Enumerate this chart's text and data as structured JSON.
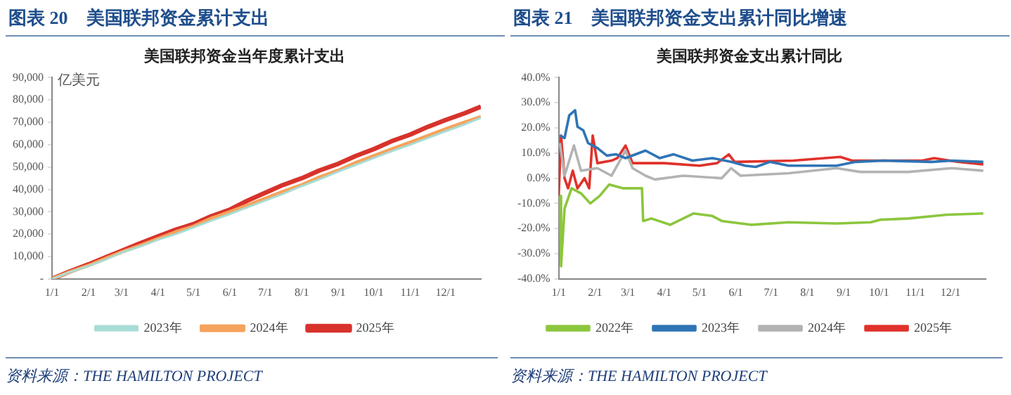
{
  "chart_data": [
    {
      "type": "line",
      "title": "图表 20　美国联邦资金累计支出",
      "subtitle": "美国联邦资金当年度累计支出",
      "ylabel": "亿美元",
      "annotations": [
        "资料来源：THE HAMILTON PROJECT"
      ],
      "legend": "bottom",
      "marker": "none",
      "xlim": [
        "--01-01",
        "--12-31"
      ],
      "xticks": [
        {
          "value": "--01-01",
          "label": "1/1"
        },
        {
          "value": "--02-01",
          "label": "2/1"
        },
        {
          "value": "--03-01",
          "label": "3/1"
        },
        {
          "value": "--04-01",
          "label": "4/1"
        },
        {
          "value": "--05-01",
          "label": "5/1"
        },
        {
          "value": "--06-01",
          "label": "6/1"
        },
        {
          "value": "--07-01",
          "label": "7/1"
        },
        {
          "value": "--08-01",
          "label": "8/1"
        },
        {
          "value": "--09-01",
          "label": "9/1"
        },
        {
          "value": "--10-01",
          "label": "10/1"
        },
        {
          "value": "--11-01",
          "label": "11/1"
        },
        {
          "value": "--12-01",
          "label": "12/1"
        }
      ],
      "ylim": [
        0,
        90000
      ],
      "yticks": [
        {
          "value": 0,
          "label": "-"
        },
        {
          "value": 10000,
          "label": "10,000"
        },
        {
          "value": 20000,
          "label": "20,000"
        },
        {
          "value": 30000,
          "label": "30,000"
        },
        {
          "value": 40000,
          "label": "40,000"
        },
        {
          "value": 50000,
          "label": "50,000"
        },
        {
          "value": 60000,
          "label": "60,000"
        },
        {
          "value": 70000,
          "label": "70,000"
        },
        {
          "value": 80000,
          "label": "80,000"
        },
        {
          "value": 90000,
          "label": "90,000"
        }
      ],
      "x": [
        "--01-01",
        "--01-16",
        "--02-01",
        "--02-15",
        "--03-01",
        "--03-17",
        "--04-01",
        "--04-16",
        "--05-01",
        "--05-16",
        "--06-01",
        "--06-16",
        "--07-01",
        "--07-16",
        "--08-01",
        "--08-16",
        "--09-01",
        "--09-16",
        "--10-01",
        "--10-16",
        "--11-01",
        "--11-16",
        "--12-01",
        "--12-17",
        "--12-31"
      ],
      "series": [
        {
          "name": "2023年",
          "color": "#a8dcd6",
          "values": [
            0,
            3000,
            5800,
            8500,
            11800,
            14500,
            17500,
            20000,
            23000,
            26000,
            29000,
            32000,
            35000,
            38000,
            41500,
            44500,
            48000,
            51000,
            54000,
            57000,
            60000,
            63000,
            66000,
            69000,
            72000
          ]
        },
        {
          "name": "2024年",
          "color": "#f5a35c",
          "values": [
            0,
            3100,
            6000,
            9000,
            12000,
            15000,
            18000,
            21000,
            23500,
            27000,
            30000,
            33000,
            36000,
            39000,
            42000,
            45500,
            48500,
            52000,
            55000,
            58000,
            61000,
            64000,
            67000,
            70000,
            72500
          ]
        },
        {
          "name": "2025年",
          "color": "#d8322c",
          "values": [
            0,
            3300,
            6500,
            9500,
            12500,
            16000,
            19000,
            22000,
            24500,
            28000,
            31000,
            35000,
            38500,
            42000,
            45000,
            48500,
            51500,
            55000,
            58000,
            61500,
            64500,
            68000,
            71000,
            74000,
            77000
          ]
        }
      ]
    },
    {
      "type": "line",
      "title": "图表 21　美国联邦资金支出累计同比增速",
      "subtitle": "美国联邦资金支出累计同比",
      "annotations": [
        "资料来源：THE HAMILTON PROJECT"
      ],
      "legend": "bottom",
      "marker": "none",
      "xlim": [
        "--01-01",
        "--12-31"
      ],
      "xticks": [
        {
          "value": "--01-01",
          "label": "1/1"
        },
        {
          "value": "--02-01",
          "label": "2/1"
        },
        {
          "value": "--03-01",
          "label": "3/1"
        },
        {
          "value": "--04-01",
          "label": "4/1"
        },
        {
          "value": "--05-01",
          "label": "5/1"
        },
        {
          "value": "--06-01",
          "label": "6/1"
        },
        {
          "value": "--07-01",
          "label": "7/1"
        },
        {
          "value": "--08-01",
          "label": "8/1"
        },
        {
          "value": "--09-01",
          "label": "9/1"
        },
        {
          "value": "--10-01",
          "label": "10/1"
        },
        {
          "value": "--11-01",
          "label": "11/1"
        },
        {
          "value": "--12-01",
          "label": "12/1"
        }
      ],
      "ylim": [
        -40,
        40
      ],
      "yticks": [
        {
          "value": -40,
          "label": "-40.0%"
        },
        {
          "value": -30,
          "label": "-30.0%"
        },
        {
          "value": -20,
          "label": "-20.0%"
        },
        {
          "value": -10,
          "label": "-10.0%"
        },
        {
          "value": 0,
          "label": "0.0%"
        },
        {
          "value": 10,
          "label": "10.0%"
        },
        {
          "value": 20,
          "label": "20.0%"
        },
        {
          "value": 30,
          "label": "30.0%"
        },
        {
          "value": 40,
          "label": "40.0%"
        }
      ],
      "series": [
        {
          "name": "2022年",
          "color": "#8cc63e",
          "x": [
            "--01-02",
            "--01-03",
            "--01-06",
            "--01-12",
            "--01-20",
            "--01-28",
            "--02-05",
            "--02-13",
            "--02-25",
            "--03-13",
            "--03-14",
            "--03-21",
            "--04-06",
            "--04-26",
            "--05-12",
            "--05-20",
            "--06-14",
            "--07-16",
            "--08-26",
            "--09-24",
            "--10-02",
            "--10-26",
            "--11-28",
            "--12-29"
          ],
          "values": [
            -7,
            -35,
            -12,
            -4,
            -6,
            -10,
            -7,
            -2.5,
            -4,
            -4,
            -17,
            -16,
            -18.5,
            -14,
            -15,
            -17,
            -18.5,
            -17.5,
            -18,
            -17.5,
            -16.5,
            -16,
            -14.5,
            -14
          ]
        },
        {
          "name": "2023年",
          "color": "#2f74b5",
          "x": [
            "--01-02",
            "--01-06",
            "--01-10",
            "--01-15",
            "--01-17",
            "--01-22",
            "--01-26",
            "--02-03",
            "--02-11",
            "--02-19",
            "--02-27",
            "--03-16",
            "--03-28",
            "--04-09",
            "--04-25",
            "--05-12",
            "--05-28",
            "--06-09",
            "--06-18",
            "--06-30",
            "--07-16",
            "--08-26",
            "--09-11",
            "--10-05",
            "--11-15",
            "--12-02",
            "--12-29"
          ],
          "values": [
            17,
            16,
            25,
            27,
            20.5,
            19,
            14,
            12,
            9,
            9.5,
            8,
            11,
            8,
            9.5,
            7,
            8,
            6.5,
            5,
            4.5,
            6.5,
            5,
            5,
            6.5,
            7,
            6.5,
            7,
            6.5
          ]
        },
        {
          "name": "2024年",
          "color": "#b3b3b3",
          "x": [
            "--01-02",
            "--01-06",
            "--01-14",
            "--01-20",
            "--02-03",
            "--02-15",
            "--02-27",
            "--03-05",
            "--03-16",
            "--03-24",
            "--04-17",
            "--05-20",
            "--05-28",
            "--06-05",
            "--07-16",
            "--08-26",
            "--09-15",
            "--10-26",
            "--12-02",
            "--12-29"
          ],
          "values": [
            14,
            1,
            13,
            3,
            4,
            1,
            11,
            4,
            1,
            -0.5,
            1,
            0,
            4,
            1,
            2,
            4,
            2.5,
            2.5,
            4,
            3
          ]
        },
        {
          "name": "2025年",
          "color": "#e0322b",
          "x": [
            "--01-01",
            "--01-03",
            "--01-06",
            "--01-09",
            "--01-13",
            "--01-17",
            "--01-23",
            "--01-27",
            "--01-30",
            "--02-03",
            "--02-15",
            "--02-20",
            "--02-27",
            "--03-05",
            "--04-01",
            "--05-01",
            "--05-16",
            "--05-26",
            "--05-31",
            "--07-20",
            "--08-29",
            "--09-08",
            "--11-07",
            "--11-17",
            "--12-07",
            "--12-29"
          ],
          "values": [
            -7,
            17,
            0,
            -4,
            3,
            -4,
            0,
            -4,
            17,
            6,
            7,
            8,
            13,
            6,
            6,
            5,
            6,
            9.5,
            6.5,
            7,
            8.5,
            7,
            7,
            8,
            6.5,
            5.5
          ]
        }
      ]
    }
  ]
}
